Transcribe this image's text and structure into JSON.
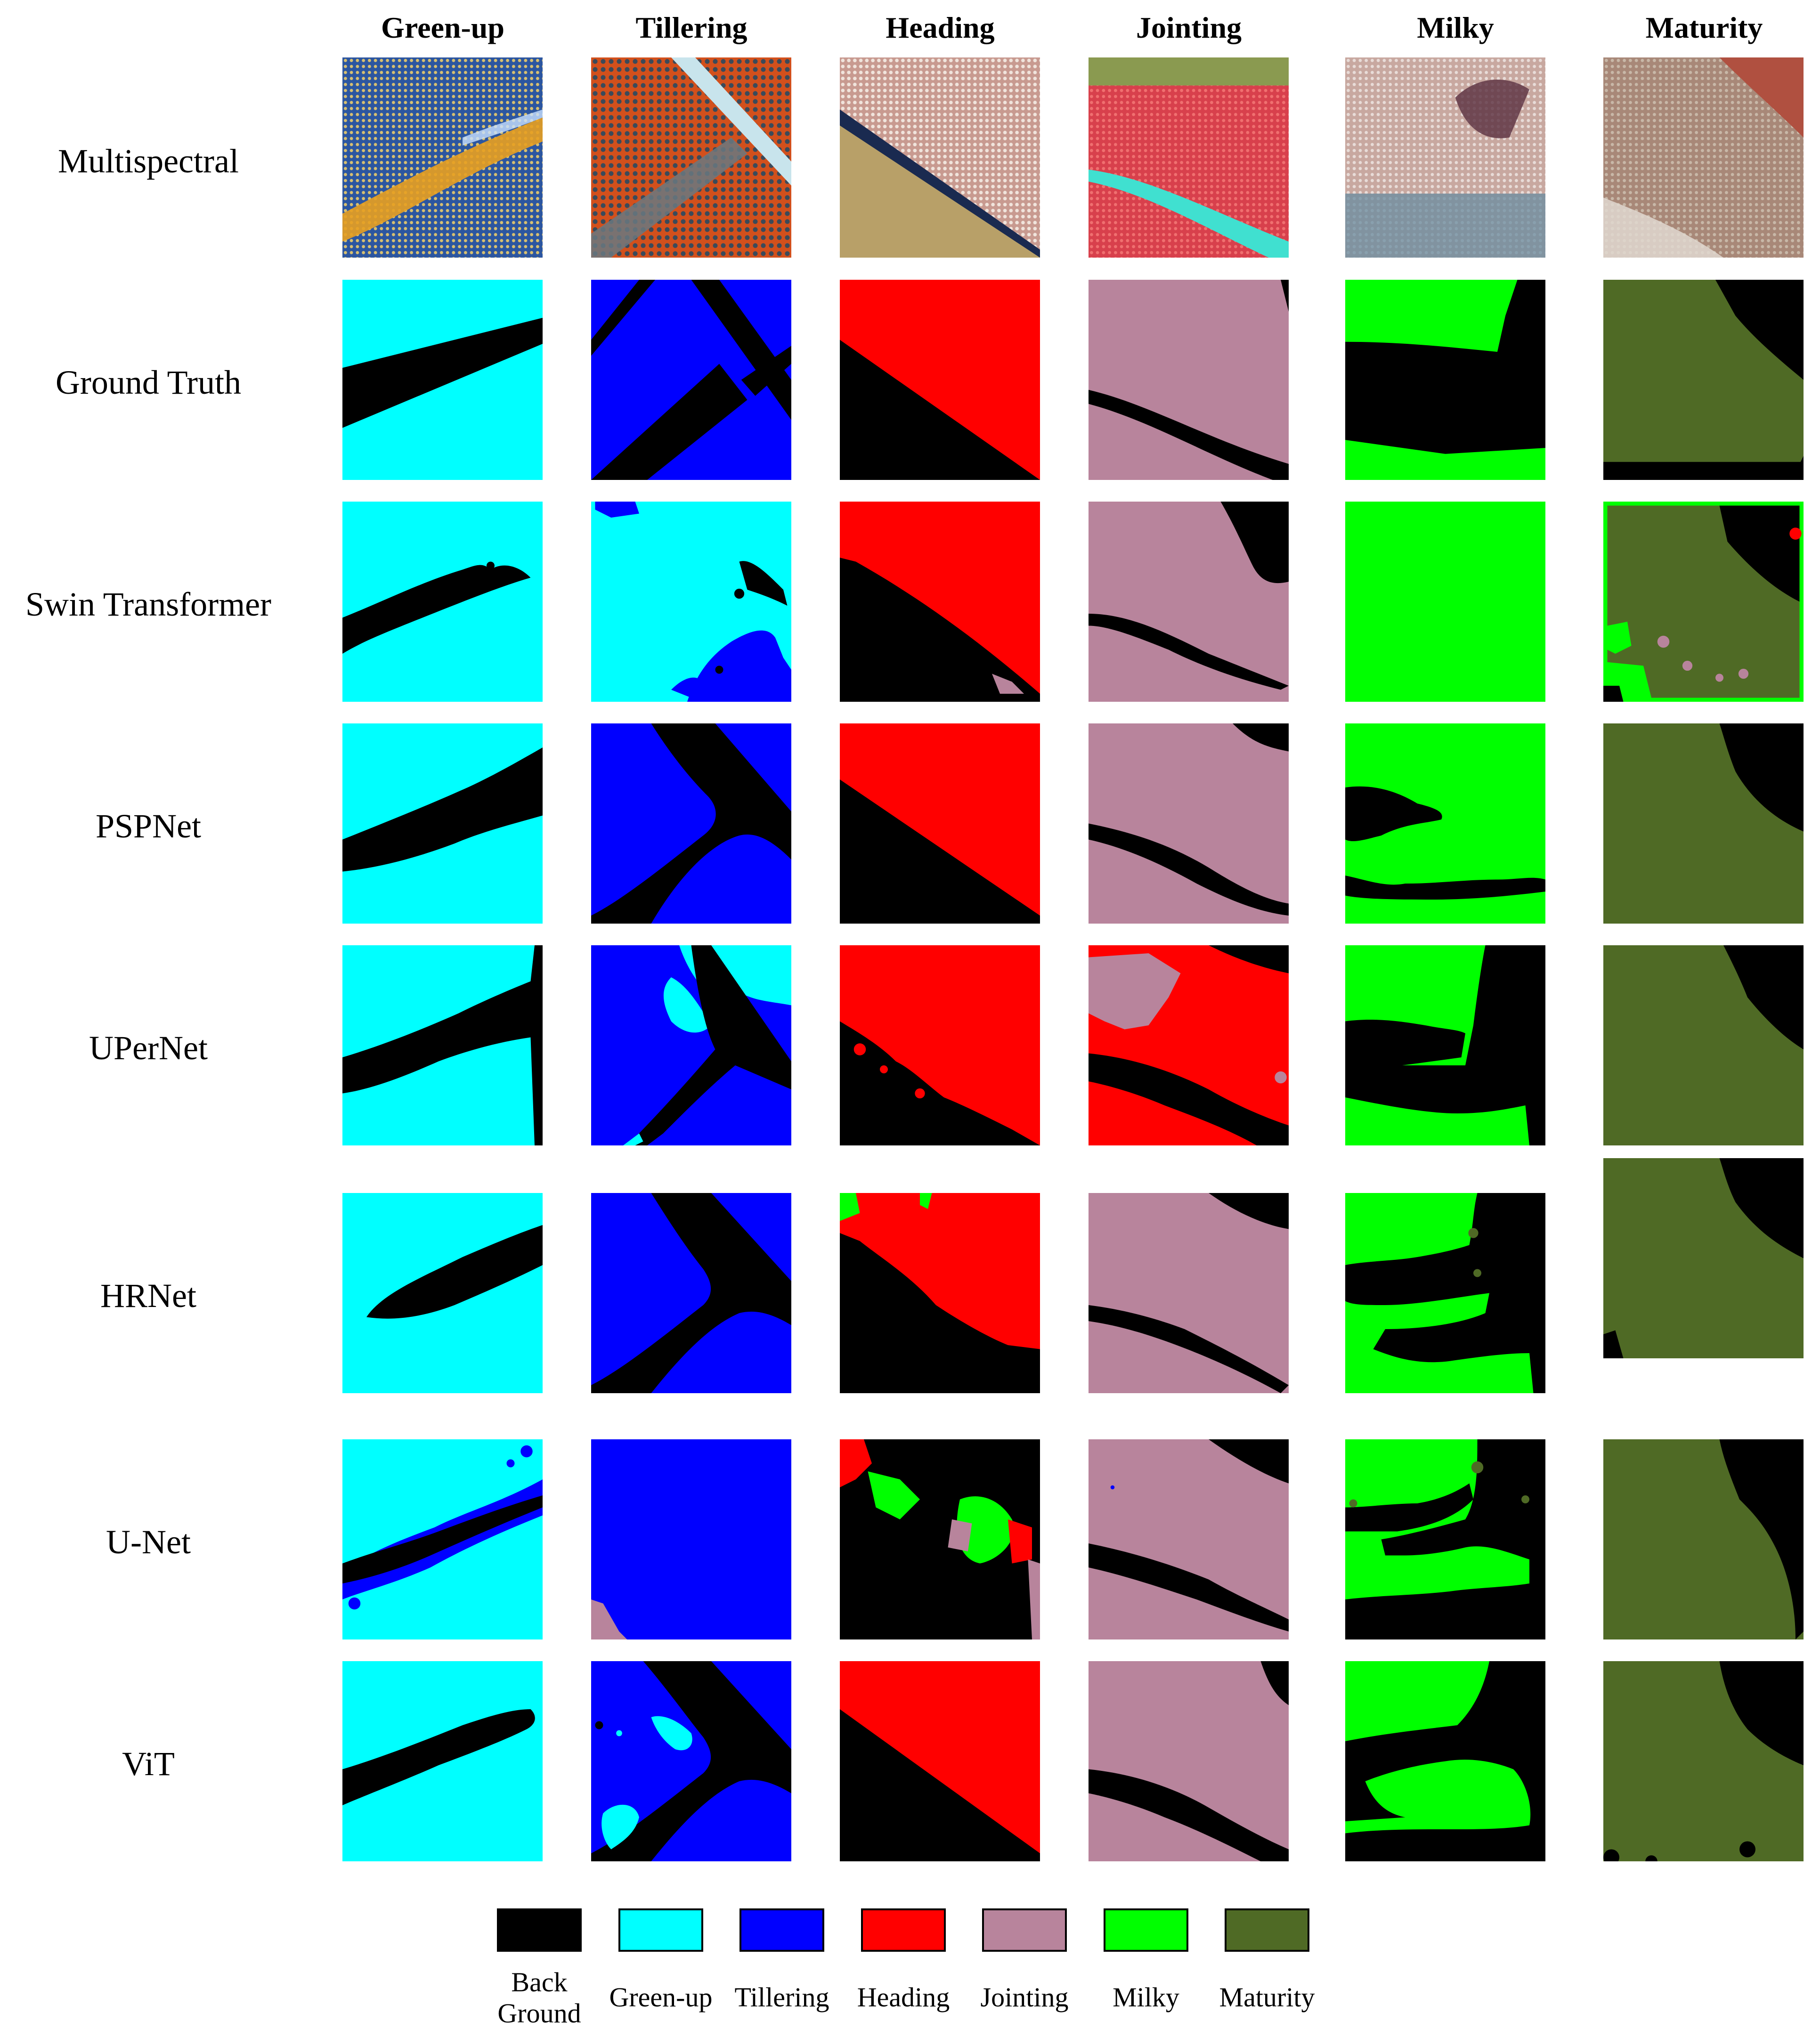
{
  "columns": [
    "Green-up",
    "Tillering",
    "Heading",
    "Jointing",
    "Milky",
    "Maturity"
  ],
  "rows": [
    "Multispectral",
    "Ground Truth",
    "Swin Transformer",
    "PSPNet",
    "UPerNet",
    "HRNet",
    "U-Net",
    "ViT"
  ],
  "legend": [
    {
      "label_line1": "Back",
      "label_line2": "Ground",
      "color": "#000000"
    },
    {
      "label_line1": "Green-up",
      "label_line2": "",
      "color": "#00ffff"
    },
    {
      "label_line1": "Tillering",
      "label_line2": "",
      "color": "#0000ff"
    },
    {
      "label_line1": "Heading",
      "label_line2": "",
      "color": "#ff0000"
    },
    {
      "label_line1": "Jointing",
      "label_line2": "",
      "color": "#b8849c"
    },
    {
      "label_line1": "Milky",
      "label_line2": "",
      "color": "#00ff00"
    },
    {
      "label_line1": "Maturity",
      "label_line2": "",
      "color": "#4f6a25"
    }
  ],
  "colors": {
    "background_class": "#000000",
    "green_up": "#00ffff",
    "tillering": "#0000ff",
    "heading": "#ff0000",
    "jointing": "#b8849c",
    "milky": "#00ff00",
    "maturity": "#4f6a25"
  }
}
